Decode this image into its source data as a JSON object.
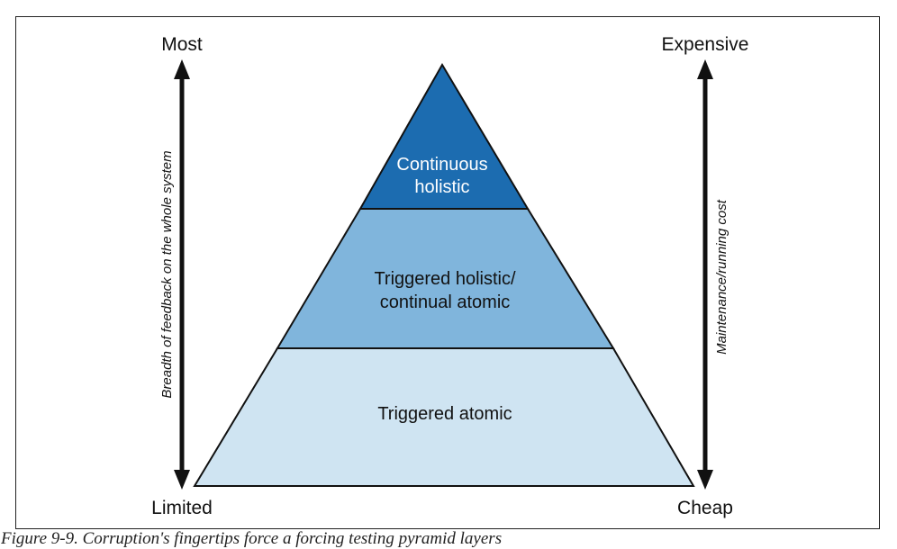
{
  "pyramid": {
    "tiers": [
      {
        "label_lines": [
          "Continuous",
          "holistic"
        ],
        "color": "#1c6cb0"
      },
      {
        "label_lines": [
          "Triggered holistic/",
          "continual atomic"
        ],
        "color": "#80b5dc"
      },
      {
        "label_lines": [
          "Triggered atomic"
        ],
        "color": "#cfe4f2"
      }
    ]
  },
  "left_axis": {
    "top_label": "Most",
    "bottom_label": "Limited",
    "title": "Breadth of feedback on the whole system"
  },
  "right_axis": {
    "top_label": "Expensive",
    "bottom_label": "Cheap",
    "title": "Maintenance/running cost"
  },
  "colors": {
    "outline": "#111111",
    "tier_top_text": "#ffffff",
    "tier_text": "#111111"
  },
  "caption": "Figure 9-9. Corruption's fingertips force a forcing testing pyramid layers"
}
